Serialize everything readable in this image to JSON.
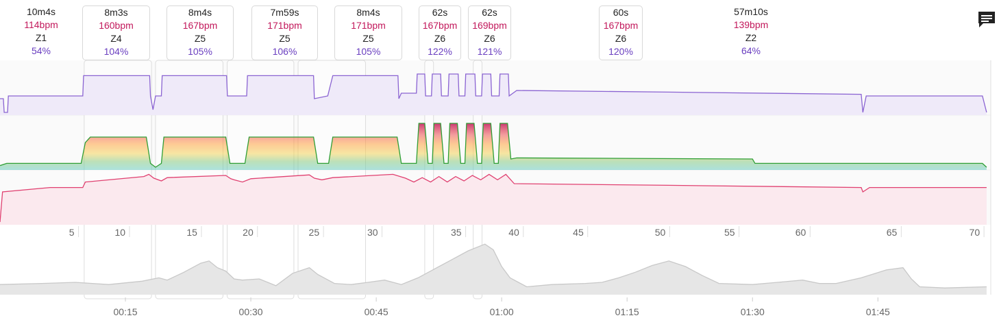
{
  "icons": {
    "comment": "comment-icon"
  },
  "colors": {
    "power_line": "#8a63d2",
    "power_fill": "#efeaf9",
    "hr_line": "#e04070",
    "hr_fill": "#fbe9ee",
    "zone_line": "#2e9e35",
    "altitude_fill": "#e6e6e6",
    "altitude_line": "#c8c8c8",
    "hr_text": "#c2185b",
    "pct_text": "#6a3fc0"
  },
  "intervals": [
    {
      "duration": "10m4s",
      "hr": "114bpm",
      "zone": "Z1",
      "pct": "54%",
      "start_min": 0,
      "end_min": 10.07,
      "boxed": false
    },
    {
      "duration": "8m3s",
      "hr": "160bpm",
      "zone": "Z4",
      "pct": "104%",
      "start_min": 10.07,
      "end_min": 18.12,
      "boxed": true
    },
    {
      "duration": "8m4s",
      "hr": "167bpm",
      "zone": "Z5",
      "pct": "105%",
      "start_min": 18.6,
      "end_min": 26.67,
      "boxed": true
    },
    {
      "duration": "7m59s",
      "hr": "171bpm",
      "zone": "Z5",
      "pct": "106%",
      "start_min": 27.17,
      "end_min": 35.15,
      "boxed": true
    },
    {
      "duration": "8m4s",
      "hr": "171bpm",
      "zone": "Z5",
      "pct": "105%",
      "start_min": 35.65,
      "end_min": 43.72,
      "boxed": true
    },
    {
      "duration": "62s",
      "hr": "167bpm",
      "zone": "Z6",
      "pct": "122%",
      "start_min": 50.8,
      "end_min": 51.85,
      "boxed": true
    },
    {
      "duration": "62s",
      "hr": "169bpm",
      "zone": "Z6",
      "pct": "121%",
      "start_min": 56.6,
      "end_min": 57.65,
      "boxed": true
    },
    {
      "duration": "60s",
      "hr": "167bpm",
      "zone": "Z6",
      "pct": "120%",
      "start_min": 0,
      "end_min": 0,
      "boxed": true
    },
    {
      "duration": "57m10s",
      "hr": "139bpm",
      "zone": "Z2",
      "pct": "64%",
      "start_min": 0,
      "end_min": 0,
      "boxed": false
    }
  ],
  "chart_data": {
    "type": "line",
    "x_unit": "minutes",
    "x_range": [
      0,
      118.5
    ],
    "distance_ticks": [
      {
        "label": "5",
        "min": 8.9
      },
      {
        "label": "10",
        "min": 15
      },
      {
        "label": "15",
        "min": 23.6
      },
      {
        "label": "20",
        "min": 30.3
      },
      {
        "label": "25",
        "min": 38.2
      },
      {
        "label": "30",
        "min": 45.2
      },
      {
        "label": "35",
        "min": 55.2
      },
      {
        "label": "40",
        "min": 62.1
      },
      {
        "label": "45",
        "min": 69.8
      },
      {
        "label": "50",
        "min": 79.6
      },
      {
        "label": "55",
        "min": 87.9
      },
      {
        "label": "60",
        "min": 96.4
      },
      {
        "label": "65",
        "min": 107.3
      },
      {
        "label": "70",
        "min": 117.2
      }
    ],
    "time_ticks": [
      {
        "label": "00:15",
        "min": 15
      },
      {
        "label": "00:30",
        "min": 30
      },
      {
        "label": "00:45",
        "min": 45
      },
      {
        "label": "01:00",
        "min": 60
      },
      {
        "label": "01:15",
        "min": 75
      },
      {
        "label": "01:30",
        "min": 90
      },
      {
        "label": "01:45",
        "min": 105
      }
    ],
    "series": [
      {
        "name": "power",
        "points": [
          [
            0,
            0.3
          ],
          [
            0.4,
            0.3
          ],
          [
            0.5,
            0.05
          ],
          [
            0.9,
            0.05
          ],
          [
            1.0,
            0.35
          ],
          [
            9.9,
            0.35
          ],
          [
            10.0,
            0.72
          ],
          [
            17.9,
            0.72
          ],
          [
            18.0,
            0.35
          ],
          [
            18.3,
            0.1
          ],
          [
            18.6,
            0.35
          ],
          [
            19.3,
            0.35
          ],
          [
            19.4,
            0.72
          ],
          [
            27.1,
            0.72
          ],
          [
            27.2,
            0.35
          ],
          [
            29.5,
            0.35
          ],
          [
            29.6,
            0.72
          ],
          [
            37.5,
            0.72
          ],
          [
            37.6,
            0.3
          ],
          [
            39.2,
            0.35
          ],
          [
            39.8,
            0.72
          ],
          [
            47.6,
            0.72
          ],
          [
            47.7,
            0.3
          ],
          [
            48.0,
            0.4
          ],
          [
            49.8,
            0.4
          ],
          [
            49.9,
            0.75
          ],
          [
            50.8,
            0.75
          ],
          [
            50.9,
            0.35
          ],
          [
            51.6,
            0.35
          ],
          [
            51.7,
            0.75
          ],
          [
            52.7,
            0.75
          ],
          [
            52.8,
            0.35
          ],
          [
            53.6,
            0.35
          ],
          [
            53.7,
            0.75
          ],
          [
            54.8,
            0.75
          ],
          [
            54.9,
            0.35
          ],
          [
            55.6,
            0.35
          ],
          [
            55.7,
            0.75
          ],
          [
            56.8,
            0.75
          ],
          [
            56.9,
            0.35
          ],
          [
            57.6,
            0.35
          ],
          [
            57.7,
            0.75
          ],
          [
            58.7,
            0.75
          ],
          [
            58.8,
            0.35
          ],
          [
            59.7,
            0.35
          ],
          [
            59.8,
            0.75
          ],
          [
            60.8,
            0.75
          ],
          [
            60.9,
            0.35
          ],
          [
            61.8,
            0.45
          ],
          [
            80,
            0.42
          ],
          [
            103,
            0.38
          ],
          [
            103.2,
            0.05
          ],
          [
            103.6,
            0.35
          ],
          [
            117.5,
            0.35
          ],
          [
            118,
            0.05
          ]
        ]
      },
      {
        "name": "hr_zone",
        "points": [
          [
            0,
            0.08
          ],
          [
            0.8,
            0.12
          ],
          [
            9.7,
            0.12
          ],
          [
            10.2,
            0.5
          ],
          [
            10.8,
            0.6
          ],
          [
            17.5,
            0.6
          ],
          [
            18.0,
            0.12
          ],
          [
            18.6,
            0.05
          ],
          [
            19.3,
            0.12
          ],
          [
            19.6,
            0.6
          ],
          [
            27.0,
            0.6
          ],
          [
            27.5,
            0.12
          ],
          [
            29.3,
            0.12
          ],
          [
            29.8,
            0.6
          ],
          [
            37.5,
            0.6
          ],
          [
            38.0,
            0.12
          ],
          [
            39.3,
            0.12
          ],
          [
            39.8,
            0.6
          ],
          [
            47.5,
            0.6
          ],
          [
            48.0,
            0.12
          ],
          [
            49.8,
            0.12
          ],
          [
            50.1,
            0.85
          ],
          [
            50.8,
            0.85
          ],
          [
            51.2,
            0.12
          ],
          [
            51.7,
            0.12
          ],
          [
            51.9,
            0.85
          ],
          [
            52.7,
            0.85
          ],
          [
            53.1,
            0.12
          ],
          [
            53.6,
            0.12
          ],
          [
            53.8,
            0.85
          ],
          [
            54.7,
            0.85
          ],
          [
            55.1,
            0.12
          ],
          [
            55.6,
            0.12
          ],
          [
            55.8,
            0.85
          ],
          [
            56.7,
            0.85
          ],
          [
            57.1,
            0.12
          ],
          [
            57.6,
            0.12
          ],
          [
            57.8,
            0.85
          ],
          [
            58.7,
            0.85
          ],
          [
            59.1,
            0.12
          ],
          [
            59.6,
            0.12
          ],
          [
            59.8,
            0.85
          ],
          [
            60.7,
            0.85
          ],
          [
            61.1,
            0.2
          ],
          [
            61.8,
            0.22
          ],
          [
            90,
            0.2
          ],
          [
            90.3,
            0.12
          ],
          [
            117.5,
            0.12
          ],
          [
            118,
            0.05
          ]
        ]
      },
      {
        "name": "heart_rate",
        "points": [
          [
            0,
            0.05
          ],
          [
            0.3,
            0.6
          ],
          [
            6,
            0.68
          ],
          [
            9.9,
            0.68
          ],
          [
            10.2,
            0.78
          ],
          [
            17.2,
            0.88
          ],
          [
            17.8,
            0.92
          ],
          [
            18.4,
            0.85
          ],
          [
            19.3,
            0.8
          ],
          [
            20,
            0.86
          ],
          [
            27,
            0.9
          ],
          [
            27.6,
            0.84
          ],
          [
            28,
            0.82
          ],
          [
            29,
            0.78
          ],
          [
            30,
            0.84
          ],
          [
            37,
            0.91
          ],
          [
            37.6,
            0.85
          ],
          [
            38.5,
            0.82
          ],
          [
            39.8,
            0.86
          ],
          [
            47,
            0.92
          ],
          [
            48.5,
            0.85
          ],
          [
            49.5,
            0.78
          ],
          [
            50.5,
            0.86
          ],
          [
            51.5,
            0.78
          ],
          [
            52.5,
            0.88
          ],
          [
            53.5,
            0.78
          ],
          [
            54.5,
            0.88
          ],
          [
            55.5,
            0.8
          ],
          [
            56.5,
            0.9
          ],
          [
            57.5,
            0.82
          ],
          [
            58.5,
            0.92
          ],
          [
            59.5,
            0.82
          ],
          [
            60.5,
            0.92
          ],
          [
            61.5,
            0.75
          ],
          [
            80,
            0.72
          ],
          [
            103,
            0.68
          ],
          [
            103.2,
            0.6
          ],
          [
            104,
            0.68
          ],
          [
            118,
            0.68
          ]
        ]
      },
      {
        "name": "altitude",
        "points": [
          [
            0,
            0.18
          ],
          [
            5,
            0.2
          ],
          [
            9,
            0.22
          ],
          [
            13,
            0.18
          ],
          [
            17,
            0.24
          ],
          [
            19,
            0.3
          ],
          [
            20,
            0.26
          ],
          [
            22,
            0.4
          ],
          [
            24,
            0.56
          ],
          [
            25,
            0.6
          ],
          [
            26,
            0.48
          ],
          [
            27,
            0.42
          ],
          [
            28,
            0.28
          ],
          [
            29,
            0.26
          ],
          [
            31,
            0.28
          ],
          [
            33,
            0.16
          ],
          [
            35,
            0.38
          ],
          [
            37,
            0.48
          ],
          [
            38,
            0.36
          ],
          [
            40,
            0.2
          ],
          [
            42,
            0.18
          ],
          [
            44,
            0.22
          ],
          [
            46,
            0.26
          ],
          [
            48,
            0.18
          ],
          [
            50,
            0.3
          ],
          [
            52,
            0.46
          ],
          [
            54,
            0.62
          ],
          [
            56,
            0.78
          ],
          [
            58,
            0.9
          ],
          [
            59,
            0.8
          ],
          [
            60,
            0.5
          ],
          [
            61,
            0.3
          ],
          [
            62,
            0.22
          ],
          [
            63,
            0.14
          ],
          [
            66,
            0.18
          ],
          [
            70,
            0.2
          ],
          [
            72,
            0.22
          ],
          [
            74,
            0.3
          ],
          [
            76,
            0.4
          ],
          [
            78,
            0.52
          ],
          [
            80,
            0.6
          ],
          [
            82,
            0.5
          ],
          [
            84,
            0.34
          ],
          [
            86,
            0.2
          ],
          [
            90,
            0.18
          ],
          [
            93,
            0.22
          ],
          [
            96,
            0.26
          ],
          [
            98,
            0.2
          ],
          [
            100,
            0.2
          ],
          [
            103,
            0.3
          ],
          [
            106,
            0.44
          ],
          [
            108,
            0.48
          ],
          [
            109,
            0.28
          ],
          [
            110,
            0.14
          ],
          [
            113,
            0.12
          ],
          [
            118,
            0.14
          ]
        ]
      }
    ]
  }
}
